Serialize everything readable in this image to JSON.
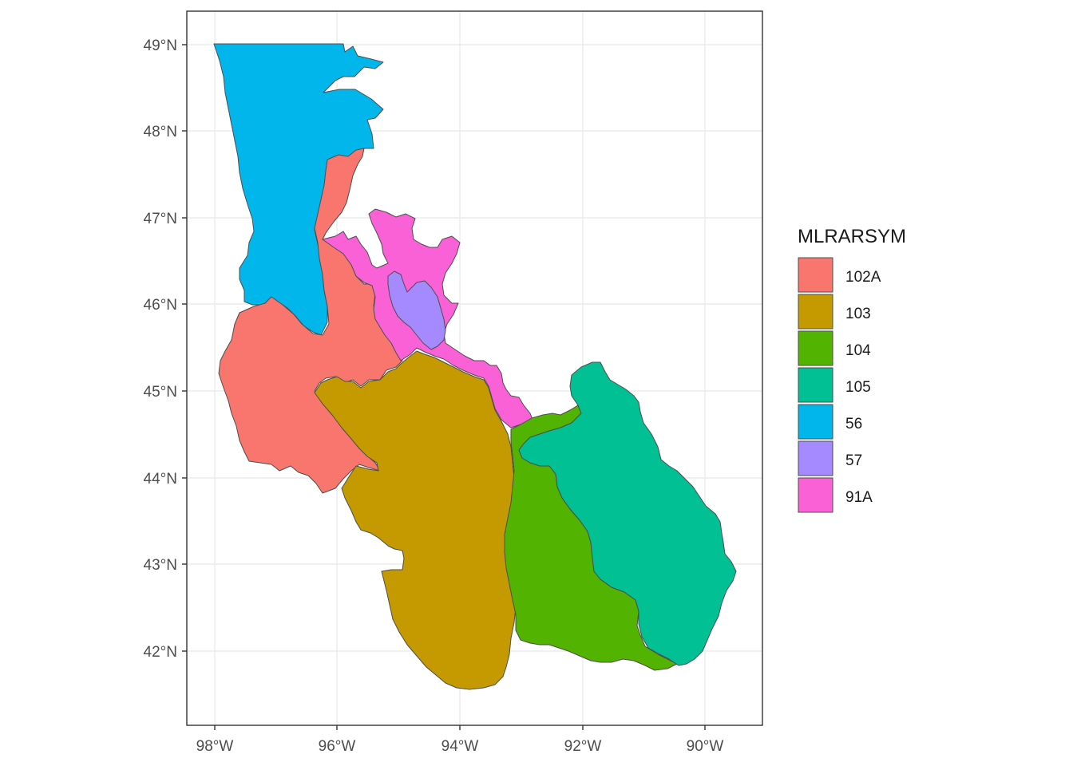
{
  "map": {
    "x_ticks": [
      "98°W",
      "96°W",
      "94°W",
      "92°W",
      "90°W"
    ],
    "y_ticks": [
      "49°N",
      "48°N",
      "47°N",
      "46°N",
      "45°N",
      "44°N",
      "43°N",
      "42°N"
    ],
    "legend": {
      "title": "MLRARSYM",
      "items": [
        {
          "label": "102A",
          "color": "#F8766D"
        },
        {
          "label": "103",
          "color": "#C49A00"
        },
        {
          "label": "104",
          "color": "#53B400"
        },
        {
          "label": "105",
          "color": "#00C094"
        },
        {
          "label": "56",
          "color": "#00B6EB"
        },
        {
          "label": "57",
          "color": "#A58AFF"
        },
        {
          "label": "91A",
          "color": "#FB61D7"
        }
      ]
    }
  }
}
